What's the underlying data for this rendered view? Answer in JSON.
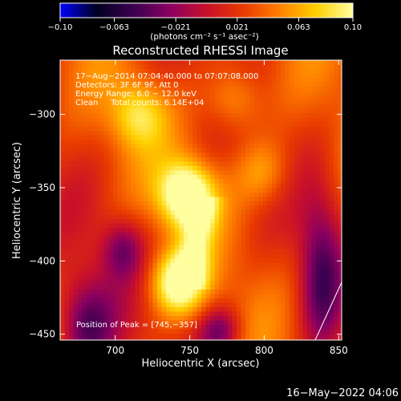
{
  "chart_data": {
    "type": "heatmap",
    "title": "Reconstructed RHESSI Image",
    "xlabel": "Heliocentric X (arcsec)",
    "ylabel": "Heliocentric Y (arcsec)",
    "xlim": [
      663,
      852
    ],
    "ylim": [
      -454,
      -263
    ],
    "x_ticks": [
      700,
      750,
      800,
      850
    ],
    "y_ticks": [
      -300,
      -350,
      -400,
      -450
    ],
    "colorbar": {
      "range": [
        -0.1,
        0.1
      ],
      "tick_values": [
        -0.1,
        -0.063,
        -0.021,
        0.021,
        0.063,
        0.1
      ],
      "tick_labels": [
        "−0.10",
        "−0.063",
        "−0.021",
        "0.021",
        "0.063",
        "0.10"
      ],
      "unit_label": "(photons cm⁻² s⁻¹ asec⁻²)",
      "colormap": [
        "#0000ff",
        "#000020",
        "#3a0050",
        "#8a0060",
        "#c8102a",
        "#e83a00",
        "#ff8000",
        "#ffd000",
        "#ffffa0"
      ]
    },
    "annotations": [
      "17−Aug−2014 07:04:40.000 to 07:07:08.000",
      "Detectors: 3F 6F 9F, Att 0",
      "Energy Range: 6.0 − 12.0 keV",
      "Clean     Total counts: 6.14E+04"
    ],
    "peak_label": "Position of Peak = [745,−357]",
    "peak": [
      745,
      -357
    ],
    "sources": [
      {
        "x": 748,
        "y": -355,
        "amplitude": 0.1
      },
      {
        "x": 742,
        "y": -415,
        "amplitude": 0.085
      },
      {
        "x": 715,
        "y": -300,
        "amplitude": 0.05
      },
      {
        "x": 780,
        "y": -290,
        "amplitude": 0.045
      },
      {
        "x": 800,
        "y": -340,
        "amplitude": 0.04
      }
    ],
    "timestamp": "16−May−2022 04:06"
  }
}
